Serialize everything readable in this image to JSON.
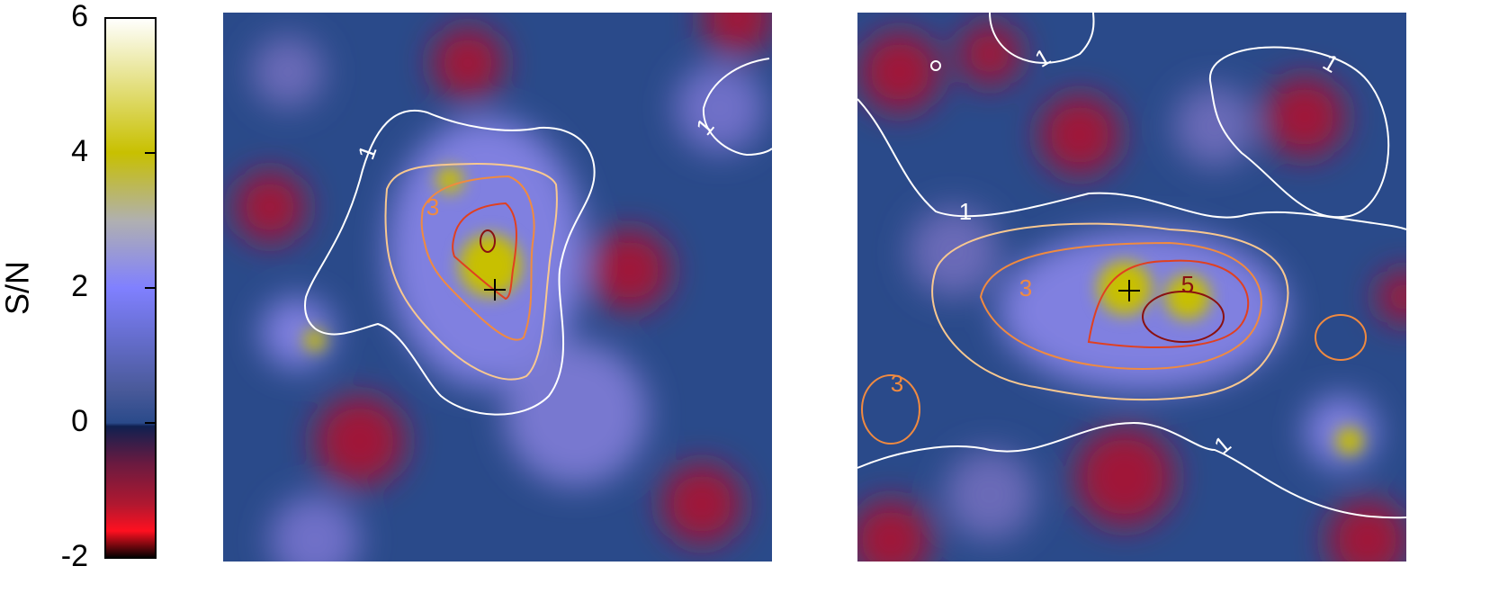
{
  "chart_data": [
    {
      "type": "colorbar",
      "label": "S/N",
      "ylim": [
        -2,
        6
      ],
      "yticks": [
        -2,
        0,
        2,
        4,
        6
      ],
      "colormap": [
        {
          "value": -2,
          "color": "#000000"
        },
        {
          "value": -1.6,
          "color": "#ff1020"
        },
        {
          "value": -1.2,
          "color": "#b01830"
        },
        {
          "value": -0.6,
          "color": "#6a1a40"
        },
        {
          "value": -0.05,
          "color": "#102050"
        },
        {
          "value": 0,
          "color": "#2a4a8a"
        },
        {
          "value": 0.5,
          "color": "#4a5a9a"
        },
        {
          "value": 2,
          "color": "#8080ff"
        },
        {
          "value": 3,
          "color": "#b0b0b0"
        },
        {
          "value": 4,
          "color": "#c8c000"
        },
        {
          "value": 6,
          "color": "#ffffff"
        }
      ]
    },
    {
      "type": "map",
      "contours": [
        {
          "level": 1,
          "color": "#ffffff"
        },
        {
          "level": 2,
          "color": "#f8c890"
        },
        {
          "level": 3,
          "color": "#f08a40"
        },
        {
          "level": 4,
          "color": "#e04020"
        },
        {
          "level": 5,
          "color": "#8a1010"
        }
      ]
    },
    {
      "type": "map",
      "contours": [
        {
          "level": 1,
          "color": "#ffffff"
        },
        {
          "level": 2,
          "color": "#f8c890"
        },
        {
          "level": 3,
          "color": "#f08a40"
        },
        {
          "level": 4,
          "color": "#e04020"
        },
        {
          "level": 5,
          "color": "#8a1010"
        }
      ]
    }
  ]
}
